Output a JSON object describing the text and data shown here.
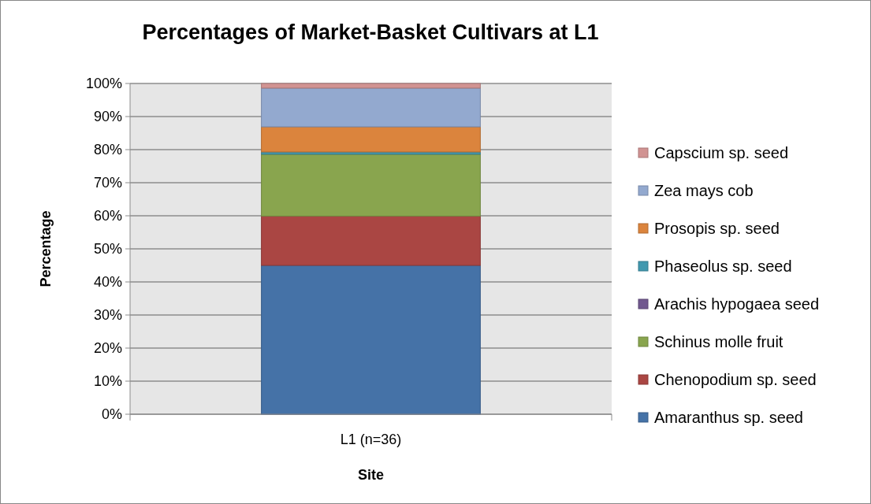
{
  "chart_data": {
    "type": "bar",
    "stacked": true,
    "title": "Percentages of Market-Basket Cultivars at L1",
    "xlabel": "Site",
    "ylabel": "Percentage",
    "categories": [
      "L1 (n=36)"
    ],
    "series": [
      {
        "name": "Amaranthus sp. seed",
        "color": "#4572a7",
        "values": [
          45.0
        ]
      },
      {
        "name": "Chenopodium sp. seed",
        "color": "#aa4643",
        "values": [
          14.9
        ]
      },
      {
        "name": "Schinus molle fruit",
        "color": "#89a54e",
        "values": [
          18.7
        ]
      },
      {
        "name": "Arachis hypogaea seed",
        "color": "#71588f",
        "values": [
          0
        ]
      },
      {
        "name": "Phaseolus sp. seed",
        "color": "#4198af",
        "values": [
          0.7
        ]
      },
      {
        "name": "Prosopis sp. seed",
        "color": "#db843d",
        "values": [
          7.6
        ]
      },
      {
        "name": "Zea mays cob",
        "color": "#93a9cf",
        "values": [
          11.7
        ]
      },
      {
        "name": "Capscium sp. seed",
        "color": "#d19392",
        "values": [
          1.4
        ]
      }
    ],
    "ylim": [
      0,
      100
    ],
    "yticks": [
      {
        "value": 0,
        "label": "0%"
      },
      {
        "value": 10,
        "label": "10%"
      },
      {
        "value": 20,
        "label": "20%"
      },
      {
        "value": 30,
        "label": "30%"
      },
      {
        "value": 40,
        "label": "40%"
      },
      {
        "value": 50,
        "label": "50%"
      },
      {
        "value": 60,
        "label": "60%"
      },
      {
        "value": 70,
        "label": "70%"
      },
      {
        "value": 80,
        "label": "80%"
      },
      {
        "value": 90,
        "label": "90%"
      },
      {
        "value": 100,
        "label": "100%"
      }
    ],
    "grid": "y",
    "legend": "right"
  }
}
